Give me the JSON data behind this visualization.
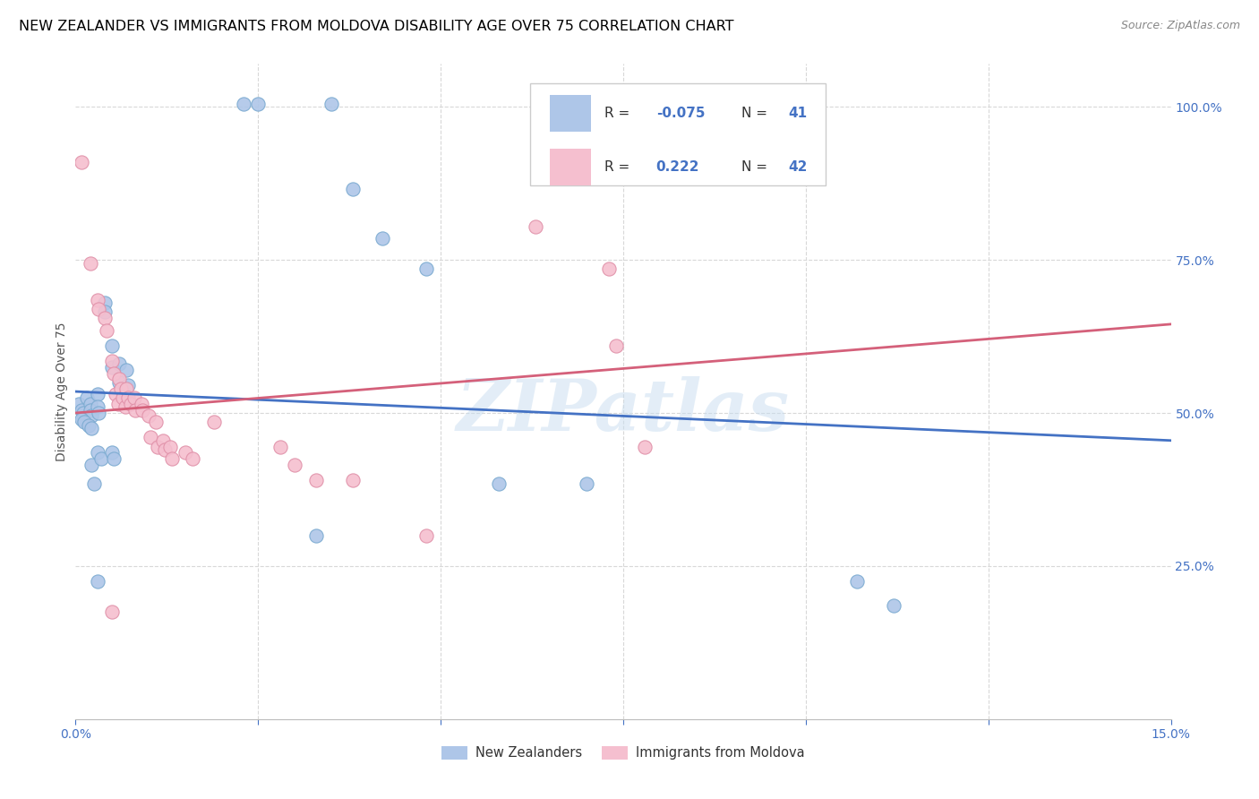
{
  "title": "NEW ZEALANDER VS IMMIGRANTS FROM MOLDOVA DISABILITY AGE OVER 75 CORRELATION CHART",
  "source": "Source: ZipAtlas.com",
  "ylabel": "Disability Age Over 75",
  "xlim": [
    0.0,
    0.15
  ],
  "ylim": [
    0.0,
    1.07
  ],
  "legend_blue_R": "-0.075",
  "legend_blue_N": "41",
  "legend_pink_R": "0.222",
  "legend_pink_N": "42",
  "blue_scatter": [
    [
      0.0005,
      0.515
    ],
    [
      0.0008,
      0.505
    ],
    [
      0.001,
      0.5
    ],
    [
      0.001,
      0.49
    ],
    [
      0.0015,
      0.525
    ],
    [
      0.002,
      0.515
    ],
    [
      0.002,
      0.505
    ],
    [
      0.0022,
      0.495
    ],
    [
      0.003,
      0.53
    ],
    [
      0.003,
      0.51
    ],
    [
      0.0032,
      0.5
    ],
    [
      0.004,
      0.68
    ],
    [
      0.004,
      0.665
    ],
    [
      0.005,
      0.61
    ],
    [
      0.005,
      0.575
    ],
    [
      0.006,
      0.58
    ],
    [
      0.006,
      0.55
    ],
    [
      0.007,
      0.57
    ],
    [
      0.0072,
      0.545
    ],
    [
      0.0022,
      0.415
    ],
    [
      0.0025,
      0.385
    ],
    [
      0.003,
      0.435
    ],
    [
      0.0035,
      0.425
    ],
    [
      0.005,
      0.435
    ],
    [
      0.0052,
      0.425
    ],
    [
      0.0008,
      0.49
    ],
    [
      0.0012,
      0.485
    ],
    [
      0.0018,
      0.48
    ],
    [
      0.0022,
      0.475
    ],
    [
      0.023,
      1.005
    ],
    [
      0.025,
      1.005
    ],
    [
      0.035,
      1.005
    ],
    [
      0.038,
      0.865
    ],
    [
      0.042,
      0.785
    ],
    [
      0.048,
      0.735
    ],
    [
      0.107,
      0.225
    ],
    [
      0.112,
      0.185
    ],
    [
      0.003,
      0.225
    ],
    [
      0.058,
      0.385
    ],
    [
      0.033,
      0.3
    ],
    [
      0.07,
      0.385
    ]
  ],
  "pink_scatter": [
    [
      0.0008,
      0.91
    ],
    [
      0.002,
      0.745
    ],
    [
      0.003,
      0.685
    ],
    [
      0.0032,
      0.67
    ],
    [
      0.004,
      0.655
    ],
    [
      0.0042,
      0.635
    ],
    [
      0.005,
      0.585
    ],
    [
      0.0052,
      0.565
    ],
    [
      0.0055,
      0.53
    ],
    [
      0.0058,
      0.515
    ],
    [
      0.006,
      0.555
    ],
    [
      0.0062,
      0.54
    ],
    [
      0.0065,
      0.525
    ],
    [
      0.0068,
      0.51
    ],
    [
      0.007,
      0.54
    ],
    [
      0.0072,
      0.525
    ],
    [
      0.0075,
      0.515
    ],
    [
      0.008,
      0.525
    ],
    [
      0.0082,
      0.505
    ],
    [
      0.009,
      0.515
    ],
    [
      0.0092,
      0.505
    ],
    [
      0.01,
      0.495
    ],
    [
      0.0102,
      0.46
    ],
    [
      0.011,
      0.485
    ],
    [
      0.0112,
      0.445
    ],
    [
      0.012,
      0.455
    ],
    [
      0.0122,
      0.44
    ],
    [
      0.013,
      0.445
    ],
    [
      0.0132,
      0.425
    ],
    [
      0.015,
      0.435
    ],
    [
      0.016,
      0.425
    ],
    [
      0.019,
      0.485
    ],
    [
      0.028,
      0.445
    ],
    [
      0.03,
      0.415
    ],
    [
      0.033,
      0.39
    ],
    [
      0.038,
      0.39
    ],
    [
      0.063,
      0.805
    ],
    [
      0.073,
      0.735
    ],
    [
      0.078,
      0.445
    ],
    [
      0.005,
      0.175
    ],
    [
      0.074,
      0.61
    ],
    [
      0.048,
      0.3
    ]
  ],
  "blue_line_x": [
    0.0,
    0.15
  ],
  "blue_line_y": [
    0.535,
    0.455
  ],
  "pink_line_x": [
    0.0,
    0.15
  ],
  "pink_line_y": [
    0.5,
    0.645
  ],
  "watermark": "ZIPatlas",
  "background_color": "#ffffff",
  "grid_color": "#d8d8d8",
  "blue_fill_color": "#aec6e8",
  "blue_edge_color": "#7aaad0",
  "blue_line_color": "#4472c4",
  "pink_fill_color": "#f5bfcf",
  "pink_edge_color": "#e090a8",
  "pink_line_color": "#d4607a",
  "scatter_size": 120,
  "title_fontsize": 11.5,
  "axis_label_fontsize": 10,
  "tick_fontsize": 10,
  "tick_color": "#4472c4",
  "legend_text_color_black": "#333333",
  "legend_value_color": "#4472c4"
}
